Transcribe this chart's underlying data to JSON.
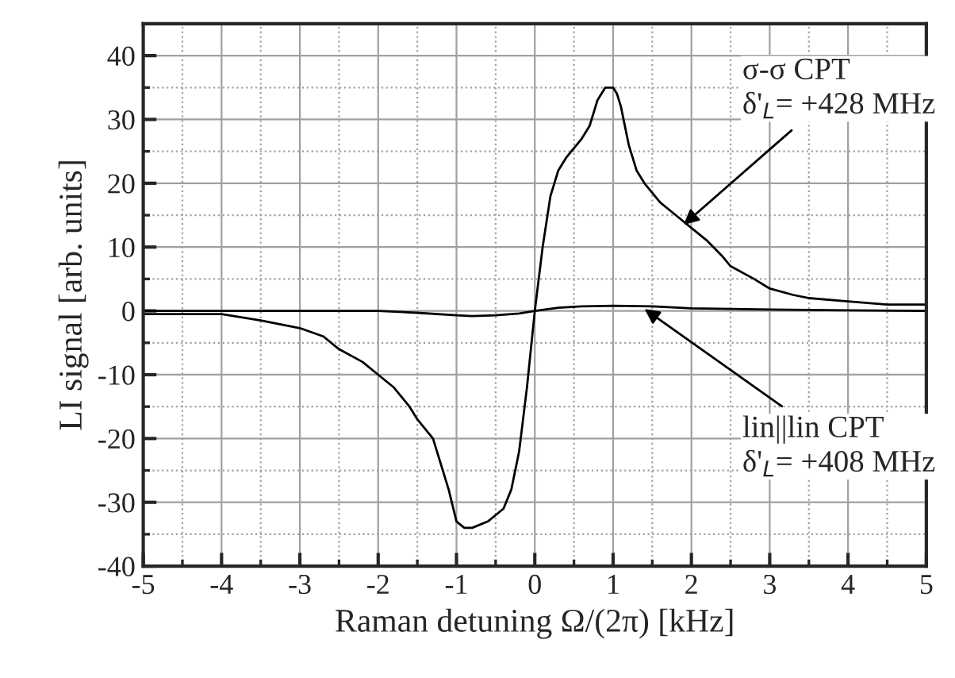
{
  "chart_data": {
    "type": "line",
    "xlabel": "Raman detuning Ω/(2π) [kHz]",
    "ylabel": "LI signal [arb. units]",
    "xlim": [
      -5,
      5
    ],
    "ylim": [
      -40,
      45
    ],
    "xticks": [
      -5,
      {
        "value": -4.5,
        "label": null
      },
      -4,
      {
        "value": -3.5,
        "label": null
      },
      -3,
      {
        "value": -2.5,
        "label": null
      },
      -2,
      {
        "value": -1.5,
        "label": null
      },
      -1,
      {
        "value": -0.5,
        "label": null
      },
      0,
      {
        "value": 0.5,
        "label": null
      },
      1,
      {
        "value": 1.5,
        "label": null
      },
      2,
      {
        "value": 2.5,
        "label": null
      },
      3,
      {
        "value": 3.5,
        "label": null
      },
      4,
      {
        "value": 4.5,
        "label": null
      },
      5
    ],
    "yticks": [
      -40,
      {
        "value": -35,
        "label": null
      },
      -30,
      {
        "value": -25,
        "label": null
      },
      -20,
      {
        "value": -15,
        "label": null
      },
      -10,
      {
        "value": -5,
        "label": null
      },
      0,
      {
        "value": 5,
        "label": null
      },
      10,
      {
        "value": 15,
        "label": null
      },
      20,
      {
        "value": 25,
        "label": null
      },
      30,
      {
        "value": 35,
        "label": null
      },
      40
    ],
    "grid": true,
    "line_style": "solid",
    "marker": "none",
    "series": [
      {
        "color": "#000000",
        "x": [
          -5,
          -4.5,
          -4,
          -3.5,
          -3,
          -2.7,
          -2.5,
          -2.2,
          -2,
          -1.8,
          -1.6,
          -1.5,
          -1.3,
          -1.2,
          -1.1,
          -1,
          -0.9,
          -0.8,
          -0.6,
          -0.4,
          -0.3,
          -0.2,
          -0.1,
          0,
          0.1,
          0.2,
          0.3,
          0.4,
          0.6,
          0.7,
          0.8,
          0.9,
          1,
          1.05,
          1.1,
          1.2,
          1.3,
          1.4,
          1.6,
          1.8,
          2,
          2.2,
          2.4,
          2.5,
          2.8,
          3,
          3.3,
          3.5,
          4,
          4.5,
          5
        ],
        "values": [
          -0.5,
          -0.5,
          -0.5,
          -1.5,
          -2.7,
          -4,
          -6,
          -8,
          -10,
          -12,
          -15,
          -17,
          -20,
          -24,
          -28,
          -33,
          -34,
          -34,
          -33,
          -31,
          -28,
          -22,
          -12,
          0,
          10,
          18,
          22,
          24,
          27,
          29,
          33,
          35,
          35,
          34,
          32,
          26,
          22,
          20,
          17,
          15,
          13,
          11,
          8.5,
          7,
          5,
          3.5,
          2.5,
          2,
          1.5,
          1,
          1
        ]
      },
      {
        "color": "#000000",
        "x": [
          -5,
          -4,
          -3,
          -2,
          -1.5,
          -1,
          -0.8,
          -0.5,
          -0.2,
          0,
          0.3,
          0.6,
          1,
          1.5,
          2,
          3,
          4,
          5
        ],
        "values": [
          0,
          0,
          0,
          0,
          -0.3,
          -0.7,
          -0.8,
          -0.7,
          -0.4,
          0,
          0.5,
          0.7,
          0.8,
          0.7,
          0.4,
          0.2,
          0.1,
          0
        ]
      }
    ],
    "annotations": [
      {
        "text": "σ-σ CPT\nδ'$_{L}$= +428 MHz",
        "x": 1.9,
        "y": 13.5
      },
      {
        "text": "lin||lin CPT\nδ'$_{L}$= +408 MHz",
        "x": 1.4,
        "y": 0.3
      }
    ]
  }
}
